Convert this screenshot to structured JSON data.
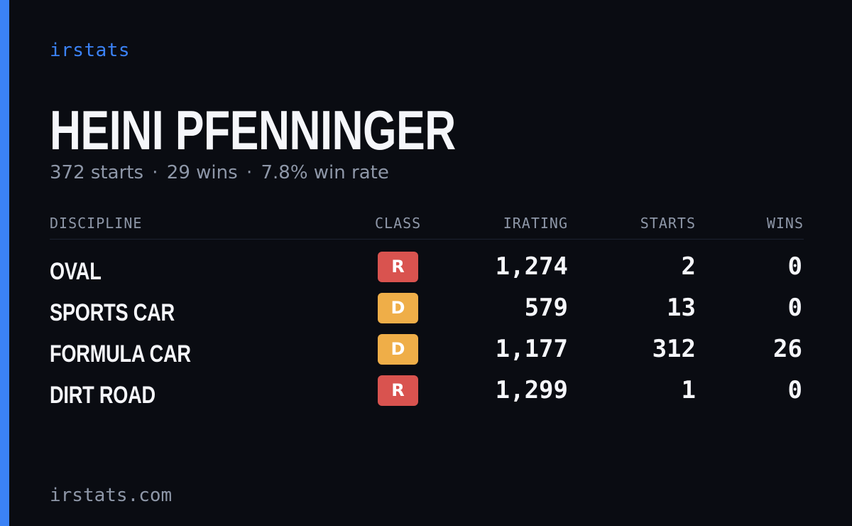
{
  "brand": "irstats",
  "driver": {
    "name": "HEINI PFENNINGER",
    "starts_text": "372 starts",
    "wins_text": "29 wins",
    "win_rate_text": "7.8% win rate",
    "separator": "·"
  },
  "table": {
    "headers": {
      "discipline": "DISCIPLINE",
      "class": "CLASS",
      "irating": "IRATING",
      "starts": "STARTS",
      "wins": "WINS"
    },
    "rows": [
      {
        "discipline": "OVAL",
        "class": "R",
        "irating": "1,274",
        "starts": "2",
        "wins": "0"
      },
      {
        "discipline": "SPORTS CAR",
        "class": "D",
        "irating": "579",
        "starts": "13",
        "wins": "0"
      },
      {
        "discipline": "FORMULA CAR",
        "class": "D",
        "irating": "1,177",
        "starts": "312",
        "wins": "26"
      },
      {
        "discipline": "DIRT ROAD",
        "class": "R",
        "irating": "1,299",
        "starts": "1",
        "wins": "0"
      }
    ]
  },
  "footer": {
    "domain": "irstats.com"
  },
  "colors": {
    "background": "#0a0c12",
    "accent": "#3b82f6",
    "text_primary": "#f5f6fa",
    "text_muted": "#8e97a8",
    "class_R": "#d9534f",
    "class_D": "#efae48"
  }
}
